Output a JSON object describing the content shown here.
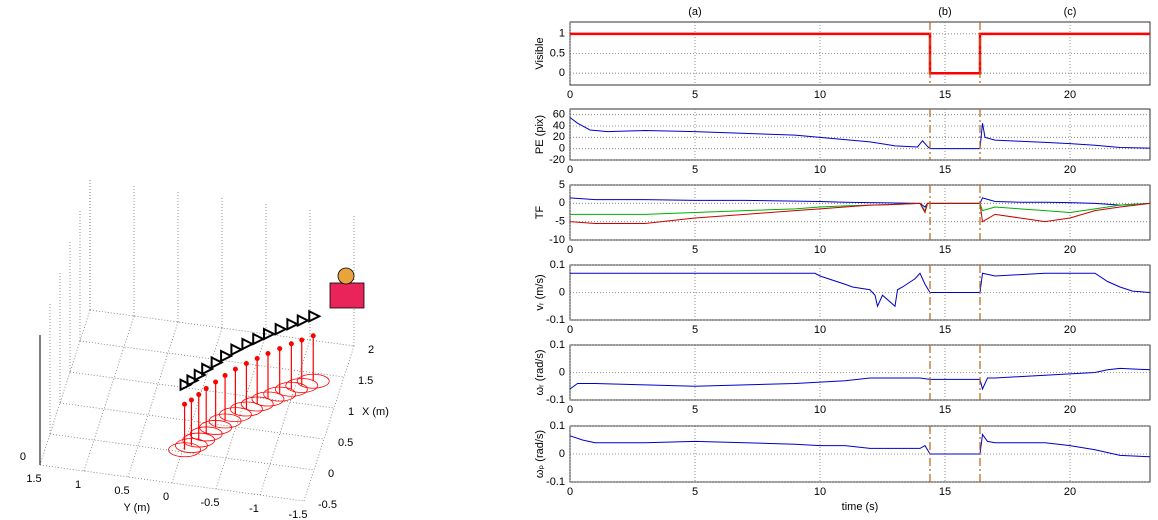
{
  "chart_data": [
    {
      "type": "scatter3d",
      "xlabel": "X (m)",
      "ylabel": "Y (m)",
      "xlim": [
        -0.5,
        2
      ],
      "ylim": [
        -1.5,
        1.5
      ],
      "zlim": [
        0,
        1
      ],
      "xticks": [
        -0.5,
        0,
        0.5,
        1,
        1.5,
        2
      ],
      "yticks": [
        -1.5,
        -1,
        -0.5,
        0,
        0.5,
        1,
        1.5
      ],
      "zticks": [
        0
      ],
      "series": [
        {
          "color": "#ff0000",
          "x": [
            0.04,
            0.12,
            0.22,
            0.33,
            0.45,
            0.57,
            0.69,
            0.8,
            0.9,
            1.0,
            1.1,
            1.2,
            1.28,
            1.37
          ],
          "values": [
            -0.02,
            -0.08,
            -0.14,
            -0.2,
            -0.28,
            -0.36,
            -0.45,
            -0.55,
            -0.65,
            -0.75,
            -0.86,
            -0.97,
            -1.07,
            -1.18
          ]
        }
      ]
    },
    {
      "type": "line",
      "ylabel": "Visible",
      "xlim": [
        0,
        23.2
      ],
      "ylim": [
        -0.3,
        1.3
      ],
      "xticks": [
        0,
        5,
        10,
        15,
        20
      ],
      "yticks": [
        0,
        0.5,
        1
      ],
      "grid": true,
      "vlines": [
        14.4,
        16.4
      ],
      "annotations": [
        {
          "text": "(a)",
          "x": 5
        },
        {
          "text": "(b)",
          "x": 15
        },
        {
          "text": "(c)",
          "x": 20
        }
      ],
      "x": [
        0,
        14.4,
        14.4,
        16.4,
        16.4,
        23.2
      ],
      "series": [
        {
          "color": "#ff0000",
          "values": [
            1,
            1,
            0,
            0,
            1,
            1
          ]
        }
      ]
    },
    {
      "type": "line",
      "ylabel": "PE (pix)",
      "xlim": [
        0,
        23.2
      ],
      "ylim": [
        -20,
        70
      ],
      "xticks": [
        0,
        5,
        10,
        15,
        20
      ],
      "yticks": [
        -20,
        0,
        20,
        40,
        60
      ],
      "grid": true,
      "vlines": [
        14.4,
        16.4
      ],
      "x": [
        0,
        0.3,
        0.8,
        1.5,
        3,
        5,
        7,
        9,
        10,
        11,
        12,
        13,
        13.9,
        14.1,
        14.3,
        14.4,
        16.4,
        16.5,
        16.6,
        17,
        18,
        19,
        20,
        21,
        22,
        23.2
      ],
      "series": [
        {
          "color": "#0000cc",
          "values": [
            55,
            45,
            33,
            30,
            32,
            30,
            27,
            24,
            20,
            16,
            12,
            5,
            3,
            14,
            4,
            0,
            0,
            45,
            20,
            15,
            13,
            11,
            9,
            6,
            2,
            1
          ]
        }
      ]
    },
    {
      "type": "line",
      "ylabel": "TF",
      "xlim": [
        0,
        23.2
      ],
      "ylim": [
        -10,
        5
      ],
      "xticks": [
        0,
        5,
        10,
        15,
        20
      ],
      "yticks": [
        -10,
        -5,
        0,
        5
      ],
      "grid": true,
      "vlines": [
        14.4,
        16.4
      ],
      "x": [
        0,
        1,
        3,
        5,
        7,
        9,
        10,
        11,
        12,
        13,
        14,
        14.2,
        14.3,
        14.4,
        16.4,
        16.5,
        17,
        18,
        19,
        20,
        21,
        22,
        23.2
      ],
      "series": [
        {
          "color": "#0000cc",
          "values": [
            1.5,
            1,
            1,
            0.8,
            0.8,
            0.6,
            0.5,
            0.3,
            0.2,
            0.1,
            0,
            -1,
            0,
            0,
            0,
            1.5,
            0.5,
            0.3,
            0.3,
            0.2,
            0,
            -0.5,
            0
          ]
        },
        {
          "color": "#00b000",
          "values": [
            -3,
            -3,
            -3,
            -2.5,
            -2,
            -1.5,
            -1,
            -0.7,
            -0.5,
            -0.3,
            0,
            -2,
            0,
            0,
            0,
            -2,
            -1,
            -1.5,
            -2,
            -2.5,
            -1.5,
            -0.5,
            0
          ]
        },
        {
          "color": "#cc0000",
          "values": [
            -5,
            -5.5,
            -5.5,
            -4,
            -3,
            -2,
            -1.5,
            -1,
            -0.5,
            -0.3,
            0,
            -2.5,
            0,
            0,
            0,
            -5,
            -3,
            -4,
            -5,
            -4,
            -2,
            -1,
            0
          ]
        }
      ]
    },
    {
      "type": "line",
      "ylabel": "vᵣ (m/s)",
      "xlim": [
        0,
        23.2
      ],
      "ylim": [
        -0.1,
        0.1
      ],
      "xticks": [
        0,
        5,
        10,
        15,
        20
      ],
      "yticks": [
        -0.1,
        0,
        0.1
      ],
      "grid": true,
      "vlines": [
        14.4,
        16.4
      ],
      "x": [
        0,
        9.8,
        10,
        11,
        11.3,
        12,
        12.2,
        12.3,
        12.5,
        13,
        13.1,
        13.3,
        13.8,
        14,
        14.2,
        14.4,
        16.4,
        16.5,
        17,
        19,
        21,
        21.5,
        22,
        22.5,
        23.2
      ],
      "series": [
        {
          "color": "#0000cc",
          "values": [
            0.07,
            0.07,
            0.06,
            0.03,
            0.02,
            0.01,
            -0.01,
            -0.05,
            -0.01,
            -0.05,
            0.01,
            0.02,
            0.05,
            0.07,
            0.03,
            0,
            0,
            0.07,
            0.06,
            0.07,
            0.07,
            0.04,
            0.02,
            0.005,
            0
          ]
        }
      ]
    },
    {
      "type": "line",
      "ylabel": "ωᵣ (rad/s)",
      "xlim": [
        0,
        23.2
      ],
      "ylim": [
        -0.1,
        0.1
      ],
      "xticks": [
        0,
        5,
        10,
        15,
        20
      ],
      "yticks": [
        -0.1,
        0,
        0.1
      ],
      "grid": true,
      "vlines": [
        14.4,
        16.4
      ],
      "x": [
        0,
        0.3,
        1,
        3,
        5,
        7,
        9,
        10,
        11,
        12,
        13,
        14,
        14.4,
        16.4,
        16.5,
        16.7,
        17,
        18,
        19,
        20,
        21,
        21.5,
        22,
        23.2
      ],
      "series": [
        {
          "color": "#0000cc",
          "values": [
            -0.06,
            -0.04,
            -0.04,
            -0.045,
            -0.05,
            -0.045,
            -0.04,
            -0.035,
            -0.03,
            -0.02,
            -0.02,
            -0.02,
            -0.025,
            -0.025,
            -0.06,
            -0.02,
            -0.02,
            -0.015,
            -0.01,
            -0.005,
            0,
            0.01,
            0.015,
            0.01
          ]
        }
      ]
    },
    {
      "type": "line",
      "ylabel": "ωₚ (rad/s)",
      "xlabel": "time (s)",
      "xlim": [
        0,
        23.2
      ],
      "ylim": [
        -0.1,
        0.1
      ],
      "xticks": [
        0,
        5,
        10,
        15,
        20
      ],
      "yticks": [
        -0.1,
        0,
        0.1
      ],
      "grid": true,
      "vlines": [
        14.4,
        16.4
      ],
      "x": [
        0,
        0.5,
        1,
        3,
        5,
        7,
        9,
        10,
        11,
        12,
        13,
        14,
        14.2,
        14.4,
        16.4,
        16.5,
        16.7,
        17,
        19,
        20,
        21,
        22,
        23.2
      ],
      "series": [
        {
          "color": "#0000cc",
          "values": [
            0.065,
            0.05,
            0.04,
            0.04,
            0.045,
            0.04,
            0.035,
            0.03,
            0.03,
            0.02,
            0.02,
            0.02,
            0.03,
            0,
            0,
            0.07,
            0.045,
            0.04,
            0.04,
            0.03,
            0.015,
            -0.005,
            -0.01
          ]
        }
      ]
    }
  ]
}
